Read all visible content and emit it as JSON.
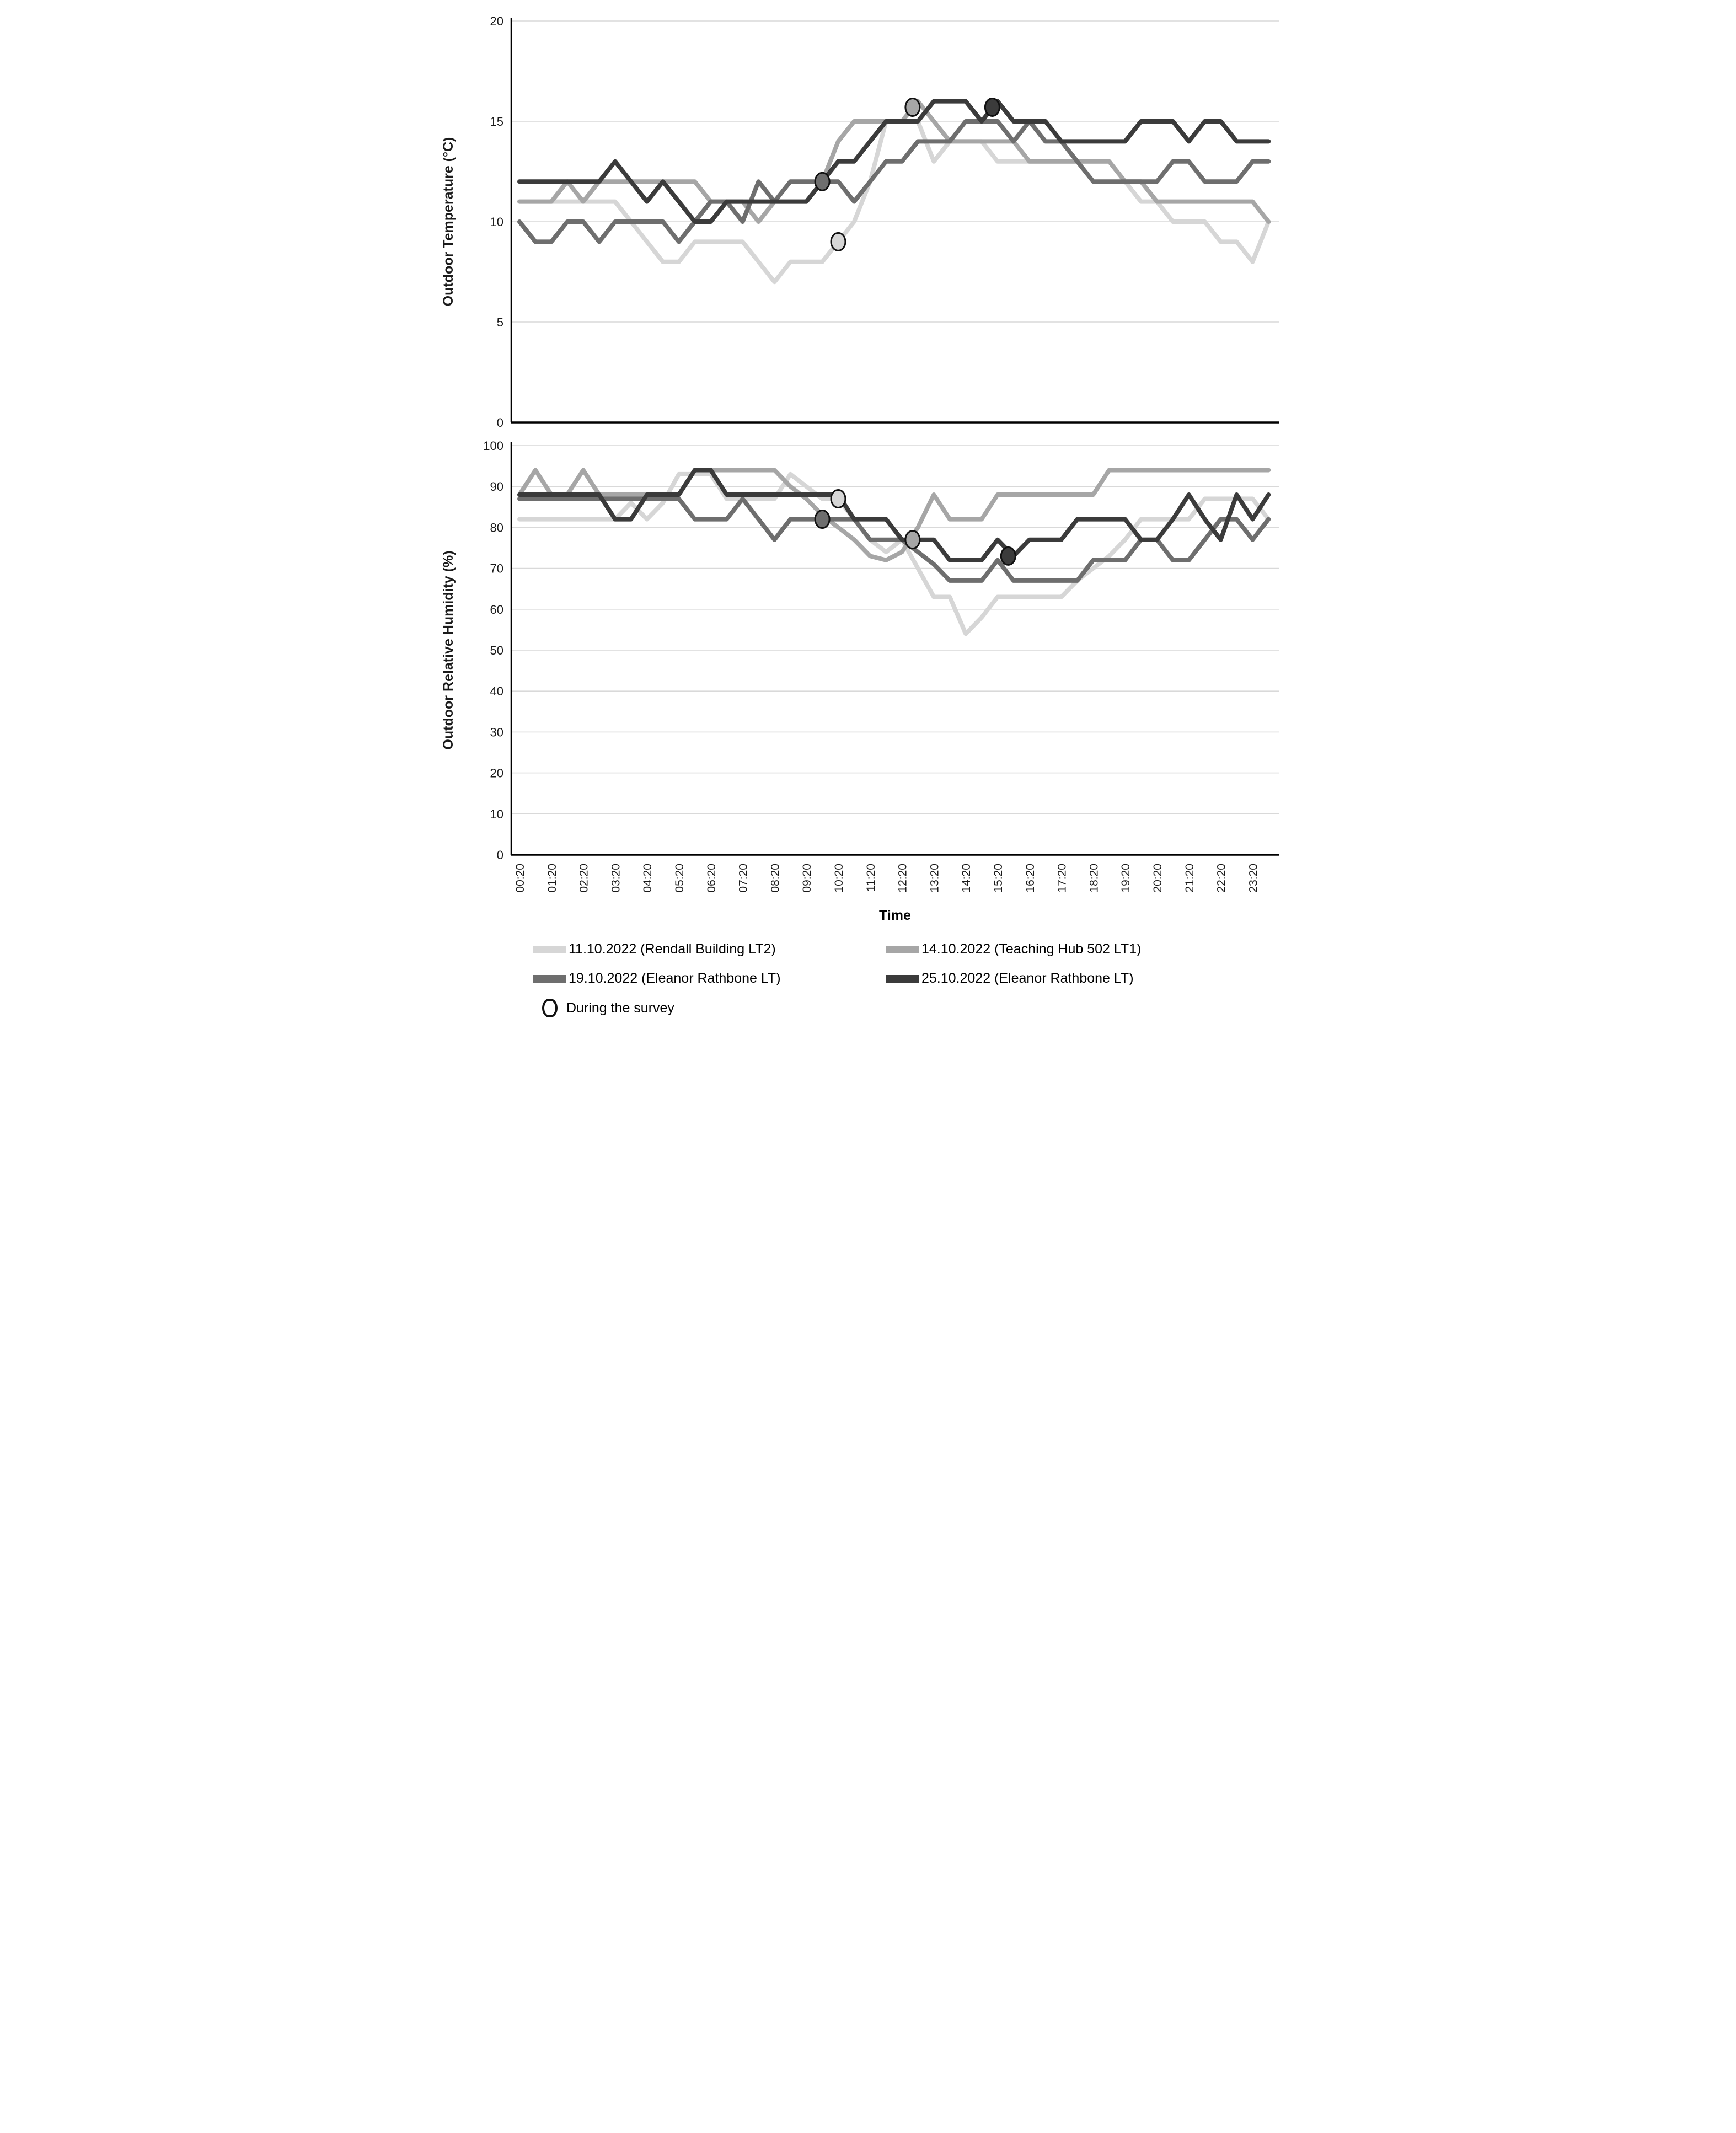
{
  "figure": {
    "background": "#ffffff",
    "gridline_color": "#d9d9d9",
    "axis_color": "#000000"
  },
  "legend": {
    "items": [
      {
        "label": "11.10.2022 (Rendall Building LT2)",
        "color": "#d6d6d6"
      },
      {
        "label": "14.10.2022 (Teaching Hub 502 LT1)",
        "color": "#a6a6a6"
      },
      {
        "label": "19.10.2022 (Eleanor Rathbone LT)",
        "color": "#6e6e6e"
      },
      {
        "label": "25.10.2022 (Eleanor Rathbone LT)",
        "color": "#3b3b3b"
      }
    ],
    "survey_label": "During the survey"
  },
  "chart_data": [
    {
      "type": "line",
      "title": "",
      "ylabel": "Outdoor Temperature (°C)",
      "xlabel": "",
      "ylim": [
        0,
        20
      ],
      "yticks": [
        0,
        5,
        10,
        15,
        20
      ],
      "grid": true,
      "x_tick_labels": [
        "00:20",
        "01:20",
        "02:20",
        "03:20",
        "04:20",
        "05:20",
        "06:20",
        "07:20",
        "08:20",
        "09:20",
        "10:20",
        "11:20",
        "12:20",
        "13:20",
        "14:20",
        "15:20",
        "16:20",
        "17:20",
        "18:20",
        "19:20",
        "20:20",
        "21:20",
        "22:20",
        "23:20"
      ],
      "points_start_time": "00:20",
      "points_interval_minutes": 30,
      "series": [
        {
          "name": "11.10.2022 (Rendall Building LT2)",
          "color": "#d6d6d6",
          "values": [
            11,
            11,
            11,
            11,
            11,
            11,
            11,
            10,
            9,
            8,
            8,
            9,
            9,
            9,
            9,
            8,
            7,
            8,
            8,
            8,
            9,
            10,
            12,
            15,
            15,
            15,
            13,
            14,
            14,
            14,
            13,
            13,
            13,
            13,
            13,
            13,
            13,
            13,
            12,
            11,
            11,
            10,
            10,
            10,
            9,
            9,
            8,
            10
          ]
        },
        {
          "name": "14.10.2022 (Teaching Hub 502 LT1)",
          "color": "#a6a6a6",
          "values": [
            11,
            11,
            11,
            12,
            11,
            12,
            12,
            12,
            12,
            12,
            12,
            12,
            11,
            11,
            11,
            10,
            11,
            11,
            11,
            12,
            14,
            15,
            15,
            15,
            15,
            16,
            15,
            14,
            14,
            14,
            14,
            14,
            13,
            13,
            13,
            13,
            13,
            13,
            12,
            12,
            11,
            11,
            11,
            11,
            11,
            11,
            11,
            10
          ]
        },
        {
          "name": "19.10.2022 (Eleanor Rathbone LT)",
          "color": "#6e6e6e",
          "values": [
            10,
            9,
            9,
            10,
            10,
            9,
            10,
            10,
            10,
            10,
            9,
            10,
            11,
            11,
            10,
            12,
            11,
            12,
            12,
            12,
            12,
            11,
            12,
            13,
            13,
            14,
            14,
            14,
            15,
            15,
            15,
            14,
            15,
            14,
            14,
            13,
            12,
            12,
            12,
            12,
            12,
            13,
            13,
            12,
            12,
            12,
            13,
            13
          ]
        },
        {
          "name": "25.10.2022 (Eleanor Rathbone LT)",
          "color": "#3b3b3b",
          "values": [
            12,
            12,
            12,
            12,
            12,
            12,
            13,
            12,
            11,
            12,
            11,
            10,
            10,
            11,
            11,
            11,
            11,
            11,
            11,
            12,
            13,
            13,
            14,
            15,
            15,
            15,
            16,
            16,
            16,
            15,
            16,
            15,
            15,
            15,
            14,
            14,
            14,
            14,
            14,
            15,
            15,
            15,
            14,
            15,
            15,
            14,
            14,
            14
          ]
        }
      ],
      "markers": [
        {
          "series": "19.10.2022 (Eleanor Rathbone LT)",
          "time": "09:50",
          "value": 12
        },
        {
          "series": "11.10.2022 (Rendall Building LT2)",
          "time": "10:20",
          "value": 9
        },
        {
          "series": "14.10.2022 (Teaching Hub 502 LT1)",
          "time": "12:40",
          "value": 15.7
        },
        {
          "series": "25.10.2022 (Eleanor Rathbone LT)",
          "time": "15:10",
          "value": 15.7
        }
      ]
    },
    {
      "type": "line",
      "title": "",
      "ylabel": "Outdoor Relative Humidity (%)",
      "xlabel": "Time",
      "ylim": [
        0,
        100
      ],
      "yticks": [
        0,
        10,
        20,
        30,
        40,
        50,
        60,
        70,
        80,
        90,
        100
      ],
      "grid": true,
      "x_tick_labels": [
        "00:20",
        "01:20",
        "02:20",
        "03:20",
        "04:20",
        "05:20",
        "06:20",
        "07:20",
        "08:20",
        "09:20",
        "10:20",
        "11:20",
        "12:20",
        "13:20",
        "14:20",
        "15:20",
        "16:20",
        "17:20",
        "18:20",
        "19:20",
        "20:20",
        "21:20",
        "22:20",
        "23:20"
      ],
      "points_start_time": "00:20",
      "points_interval_minutes": 30,
      "series": [
        {
          "name": "11.10.2022 (Rendall Building LT2)",
          "color": "#d6d6d6",
          "values": [
            82,
            82,
            82,
            82,
            82,
            82,
            82,
            86,
            82,
            86,
            93,
            93,
            93,
            87,
            87,
            87,
            87,
            93,
            90,
            87,
            87,
            82,
            77,
            74,
            77,
            70,
            63,
            63,
            54,
            58,
            63,
            63,
            63,
            63,
            63,
            67,
            70,
            73,
            77,
            82,
            82,
            82,
            82,
            87,
            87,
            87,
            87,
            82
          ]
        },
        {
          "name": "14.10.2022 (Teaching Hub 502 LT1)",
          "color": "#a6a6a6",
          "values": [
            88,
            94,
            88,
            88,
            94,
            88,
            88,
            88,
            88,
            88,
            88,
            94,
            94,
            94,
            94,
            94,
            94,
            90,
            87,
            83,
            80,
            77,
            73,
            72,
            74,
            80,
            88,
            82,
            82,
            82,
            88,
            88,
            88,
            88,
            88,
            88,
            88,
            94,
            94,
            94,
            94,
            94,
            94,
            94,
            94,
            94,
            94,
            94
          ]
        },
        {
          "name": "19.10.2022 (Eleanor Rathbone LT)",
          "color": "#6e6e6e",
          "values": [
            87,
            87,
            87,
            87,
            87,
            87,
            87,
            87,
            87,
            87,
            87,
            82,
            82,
            82,
            87,
            82,
            77,
            82,
            82,
            82,
            82,
            82,
            77,
            77,
            77,
            74,
            71,
            67,
            67,
            67,
            72,
            67,
            67,
            67,
            67,
            67,
            72,
            72,
            72,
            77,
            77,
            72,
            72,
            77,
            82,
            82,
            77,
            82
          ]
        },
        {
          "name": "25.10.2022 (Eleanor Rathbone LT)",
          "color": "#3b3b3b",
          "values": [
            88,
            88,
            88,
            88,
            88,
            88,
            82,
            82,
            88,
            88,
            88,
            94,
            94,
            88,
            88,
            88,
            88,
            88,
            88,
            88,
            88,
            82,
            82,
            82,
            77,
            77,
            77,
            72,
            72,
            72,
            77,
            73,
            77,
            77,
            77,
            82,
            82,
            82,
            82,
            77,
            77,
            82,
            88,
            82,
            77,
            88,
            82,
            88
          ]
        }
      ],
      "markers": [
        {
          "series": "19.10.2022 (Eleanor Rathbone LT)",
          "time": "09:50",
          "value": 82
        },
        {
          "series": "11.10.2022 (Rendall Building LT2)",
          "time": "10:20",
          "value": 87
        },
        {
          "series": "14.10.2022 (Teaching Hub 502 LT1)",
          "time": "12:40",
          "value": 77
        },
        {
          "series": "25.10.2022 (Eleanor Rathbone LT)",
          "time": "15:40",
          "value": 73
        }
      ]
    }
  ]
}
